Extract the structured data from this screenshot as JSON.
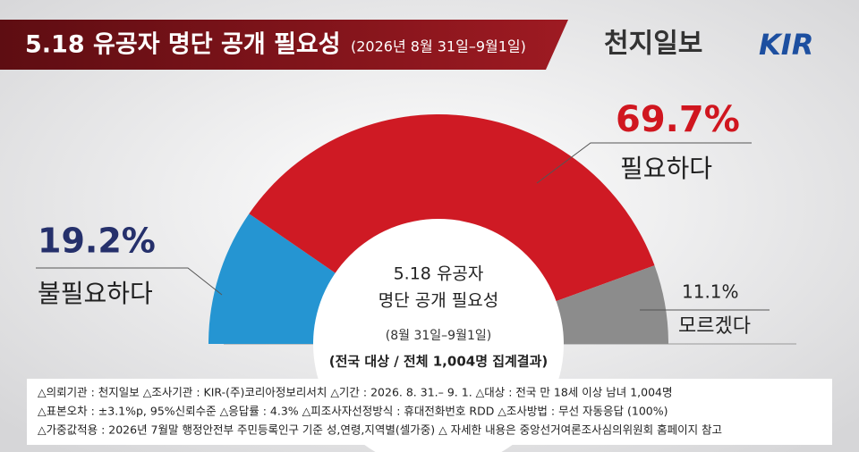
{
  "brand": [
    "천지일보",
    "KIR"
  ],
  "chart_data": {
    "type": "pie",
    "shape": "half-donut",
    "title": "5.18 유공자 명단 공개 필요성",
    "subtitle": "(2026년 8월 31일–9월1일)",
    "categories": [
      "불필요하다",
      "필요하다",
      "모르겠다"
    ],
    "values": [
      19.2,
      69.7,
      11.1
    ],
    "value_labels": [
      "19.2%",
      "69.7%",
      "11.1%"
    ],
    "colors": [
      "#2595d2",
      "#cf1a24",
      "#8c8c8c"
    ],
    "center_text": [
      "5.18 유공자",
      "명단  공개 필요성",
      "(8월 31일–9월1일)"
    ],
    "footnote": "(전국 대상 / 전체 1,004명 집계결과)",
    "notes": [
      "△의뢰기관 : 천지일보   △조사기관 : KIR-(주)코리아정보리서치   △기간 : 2026. 8. 31.– 9. 1.  △대상 : 전국 만 18세 이상 남녀 1,004명",
      "△표본오차 : ±3.1%p, 95%신뢰수준  △응답률 : 4.3%  △피조사자선정방식 : 휴대전화번호 RDD   △조사방법 : 무선 자동응답 (100%)",
      "△가중값적용 : 2026년 7월말 행정안전부 주민등록인구 기준 성,연령,지역별(셀가중)  △ 자세한 내용은 중앙선거여론조사심의위원회 홈페이지 참고"
    ]
  }
}
